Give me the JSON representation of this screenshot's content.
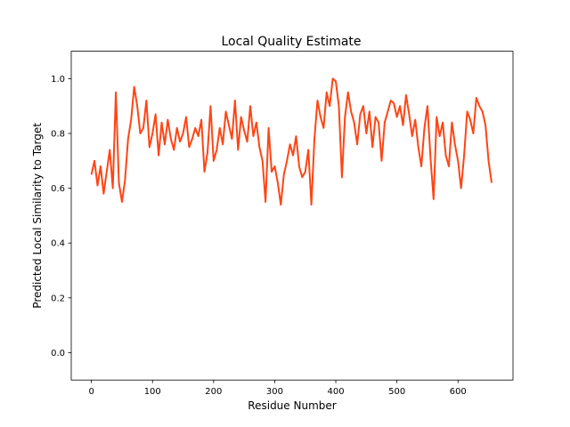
{
  "chart_data": {
    "type": "line",
    "title": "Local Quality Estimate",
    "xlabel": "Residue Number",
    "ylabel": "Predicted Local Similarity to Target",
    "xlim": [
      -33,
      690
    ],
    "ylim": [
      -0.1,
      1.1
    ],
    "xticks": [
      0,
      100,
      200,
      300,
      400,
      500,
      600
    ],
    "xtick_labels": [
      "0",
      "100",
      "200",
      "300",
      "400",
      "500",
      "600"
    ],
    "yticks": [
      0.0,
      0.2,
      0.4,
      0.6,
      0.8,
      1.0
    ],
    "ytick_labels": [
      "0.0",
      "0.2",
      "0.4",
      "0.6",
      "0.8",
      "1.0"
    ],
    "grid": false,
    "series": [
      {
        "color": "#ff4515",
        "x": [
          0,
          5,
          10,
          15,
          20,
          25,
          30,
          35,
          40,
          45,
          50,
          55,
          60,
          65,
          70,
          75,
          80,
          85,
          90,
          95,
          100,
          105,
          110,
          115,
          120,
          125,
          130,
          135,
          140,
          145,
          150,
          155,
          160,
          165,
          170,
          175,
          180,
          185,
          190,
          195,
          200,
          205,
          210,
          215,
          220,
          225,
          230,
          235,
          240,
          245,
          250,
          255,
          260,
          265,
          270,
          275,
          280,
          285,
          290,
          295,
          300,
          305,
          310,
          315,
          320,
          325,
          330,
          335,
          340,
          345,
          350,
          355,
          360,
          365,
          370,
          375,
          380,
          385,
          390,
          395,
          400,
          405,
          410,
          415,
          420,
          425,
          430,
          435,
          440,
          445,
          450,
          455,
          460,
          465,
          470,
          475,
          480,
          485,
          490,
          495,
          500,
          505,
          510,
          515,
          520,
          525,
          530,
          535,
          540,
          545,
          550,
          555,
          560,
          565,
          570,
          575,
          580,
          585,
          590,
          595,
          600,
          605,
          610,
          615,
          620,
          625,
          630,
          635,
          640,
          645,
          650,
          655
        ],
        "y": [
          0.65,
          0.7,
          0.61,
          0.68,
          0.58,
          0.66,
          0.74,
          0.6,
          0.95,
          0.62,
          0.55,
          0.63,
          0.78,
          0.85,
          0.97,
          0.9,
          0.8,
          0.82,
          0.92,
          0.75,
          0.8,
          0.87,
          0.72,
          0.84,
          0.76,
          0.85,
          0.78,
          0.74,
          0.82,
          0.77,
          0.8,
          0.86,
          0.75,
          0.78,
          0.82,
          0.79,
          0.85,
          0.66,
          0.73,
          0.9,
          0.7,
          0.74,
          0.82,
          0.76,
          0.88,
          0.83,
          0.78,
          0.92,
          0.74,
          0.86,
          0.81,
          0.77,
          0.9,
          0.79,
          0.84,
          0.75,
          0.7,
          0.55,
          0.82,
          0.66,
          0.68,
          0.62,
          0.54,
          0.65,
          0.7,
          0.76,
          0.72,
          0.79,
          0.68,
          0.64,
          0.66,
          0.74,
          0.54,
          0.78,
          0.92,
          0.86,
          0.82,
          0.95,
          0.9,
          1.0,
          0.99,
          0.9,
          0.64,
          0.86,
          0.95,
          0.88,
          0.84,
          0.76,
          0.87,
          0.9,
          0.8,
          0.88,
          0.75,
          0.86,
          0.84,
          0.7,
          0.84,
          0.88,
          0.92,
          0.91,
          0.86,
          0.9,
          0.83,
          0.94,
          0.87,
          0.79,
          0.85,
          0.75,
          0.68,
          0.82,
          0.9,
          0.71,
          0.56,
          0.86,
          0.79,
          0.84,
          0.72,
          0.68,
          0.84,
          0.76,
          0.7,
          0.6,
          0.72,
          0.88,
          0.85,
          0.8,
          0.93,
          0.9,
          0.88,
          0.83,
          0.7,
          0.62
        ]
      }
    ]
  }
}
